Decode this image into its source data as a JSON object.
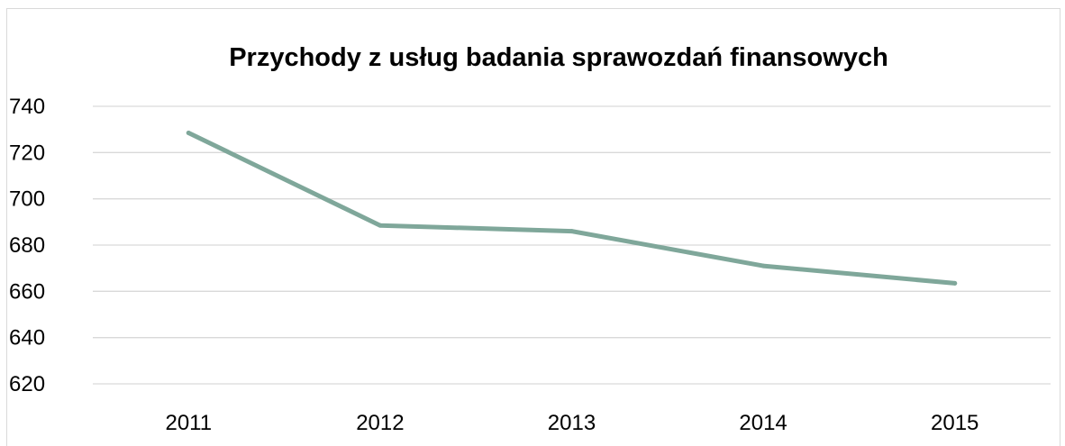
{
  "chart_data": {
    "type": "line",
    "title": "Przychody z usług badania sprawozdań finansowych",
    "xlabel": "",
    "ylabel": "",
    "categories": [
      "2011",
      "2012",
      "2013",
      "2014",
      "2015"
    ],
    "series": [
      {
        "values": [
          728.5,
          688.5,
          686,
          671,
          663.5
        ],
        "color": "#7fa79a"
      }
    ],
    "ylim": [
      620,
      740
    ],
    "yticks": [
      "740",
      "720",
      "700",
      "680",
      "660",
      "640",
      "620"
    ],
    "grid": true,
    "legend": "none"
  }
}
